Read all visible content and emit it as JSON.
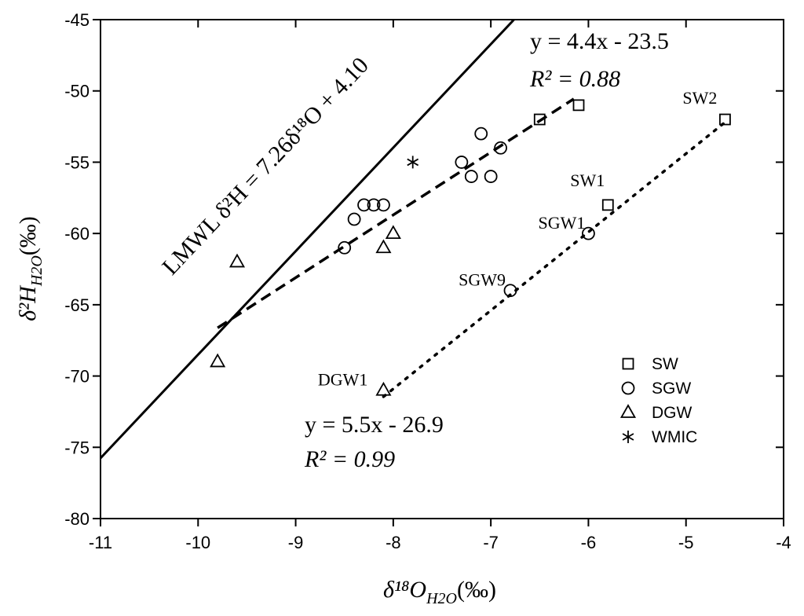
{
  "chart_data": {
    "type": "scatter",
    "x_label": {
      "symbol": "δ¹⁸O",
      "subscript": "H2O",
      "unit": "(‰)"
    },
    "y_label": {
      "symbol": "δ²H",
      "subscript": "H2O",
      "unit": "(‰)"
    },
    "xlim": [
      -11,
      -4
    ],
    "xticks": [
      -11,
      -10,
      -9,
      -8,
      -7,
      -6,
      -5,
      -4
    ],
    "ylim": [
      -80,
      -45
    ],
    "yticks": [
      -80,
      -75,
      -70,
      -65,
      -60,
      -55,
      -50,
      -45
    ],
    "legend": "lower right",
    "series": [
      {
        "name": "SW",
        "marker": "square",
        "color": "#000000",
        "x": [
          -6.5,
          -6.1,
          -4.6,
          -5.8
        ],
        "values": [
          -52,
          -51,
          -52,
          -58
        ],
        "labels": [
          null,
          null,
          "SW2",
          "SW1"
        ]
      },
      {
        "name": "SGW",
        "marker": "circle",
        "color": "#000000",
        "x": [
          -7.1,
          -6.9,
          -7.3,
          -7.2,
          -7.0,
          -8.3,
          -8.2,
          -8.1,
          -8.4,
          -8.5,
          -6.0,
          -6.8
        ],
        "values": [
          -53,
          -54,
          -55,
          -56,
          -56,
          -58,
          -58,
          -58,
          -59,
          -61,
          -60,
          -64
        ],
        "labels": [
          null,
          null,
          null,
          null,
          null,
          null,
          null,
          null,
          null,
          null,
          "SGW1",
          "SGW9"
        ]
      },
      {
        "name": "DGW",
        "marker": "triangle",
        "color": "#000000",
        "x": [
          -9.6,
          -8.0,
          -8.1,
          -9.8,
          -8.1
        ],
        "values": [
          -62,
          -60,
          -61,
          -69,
          -71
        ],
        "labels": [
          null,
          null,
          null,
          null,
          "DGW1"
        ]
      },
      {
        "name": "WMIC",
        "marker": "asterisk",
        "color": "#000000",
        "x": [
          -7.8
        ],
        "values": [
          -55
        ],
        "labels": [
          null
        ]
      }
    ],
    "lines": [
      {
        "style": "solid",
        "slope": 7.26,
        "intercept": 4.1,
        "xrange": [
          -11,
          -6.763
        ],
        "label": "LMWL δ²H = 7.26δ¹⁸O + 4.10"
      },
      {
        "style": "dashed",
        "slope": 4.4,
        "intercept": -23.5,
        "xrange": [
          -9.8,
          -6.15
        ],
        "label": "y = 4.4x - 23.5",
        "r2_label": "R² = 0.88"
      },
      {
        "style": "dotted",
        "slope": 5.5,
        "intercept": -26.9,
        "xrange": [
          -8.1,
          -4.6
        ],
        "label": "y = 5.5x - 26.9",
        "r2_label": "R² = 0.99"
      }
    ]
  }
}
